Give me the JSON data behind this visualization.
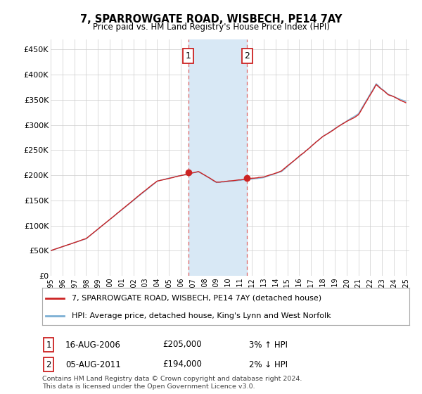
{
  "title": "7, SPARROWGATE ROAD, WISBECH, PE14 7AY",
  "subtitle": "Price paid vs. HM Land Registry's House Price Index (HPI)",
  "ylabel_ticks": [
    "£0",
    "£50K",
    "£100K",
    "£150K",
    "£200K",
    "£250K",
    "£300K",
    "£350K",
    "£400K",
    "£450K"
  ],
  "ytick_values": [
    0,
    50000,
    100000,
    150000,
    200000,
    250000,
    300000,
    350000,
    400000,
    450000
  ],
  "ylim": [
    0,
    470000
  ],
  "xlim_start": 1995.0,
  "xlim_end": 2025.3,
  "hpi_color": "#7bafd4",
  "price_color": "#cc2222",
  "marker1_year": 2006.62,
  "marker1_price": 205000,
  "marker1_label": "1",
  "marker1_date": "16-AUG-2006",
  "marker1_amount": "£205,000",
  "marker1_pct": "3% ↑ HPI",
  "marker2_year": 2011.59,
  "marker2_price": 194000,
  "marker2_label": "2",
  "marker2_date": "05-AUG-2011",
  "marker2_amount": "£194,000",
  "marker2_pct": "2% ↓ HPI",
  "shade_color": "#d8e8f5",
  "vline_color": "#dd6666",
  "legend_line1": "7, SPARROWGATE ROAD, WISBECH, PE14 7AY (detached house)",
  "legend_line2": "HPI: Average price, detached house, King's Lynn and West Norfolk",
  "footnote1": "Contains HM Land Registry data © Crown copyright and database right 2024.",
  "footnote2": "This data is licensed under the Open Government Licence v3.0.",
  "xtick_years": [
    1995,
    1996,
    1997,
    1998,
    1999,
    2000,
    2001,
    2002,
    2003,
    2004,
    2005,
    2006,
    2007,
    2008,
    2009,
    2010,
    2011,
    2012,
    2013,
    2014,
    2015,
    2016,
    2017,
    2018,
    2019,
    2020,
    2021,
    2022,
    2023,
    2024,
    2025
  ],
  "grid_color": "#cccccc",
  "bg_color": "white",
  "box_edge_color": "#cc2222"
}
